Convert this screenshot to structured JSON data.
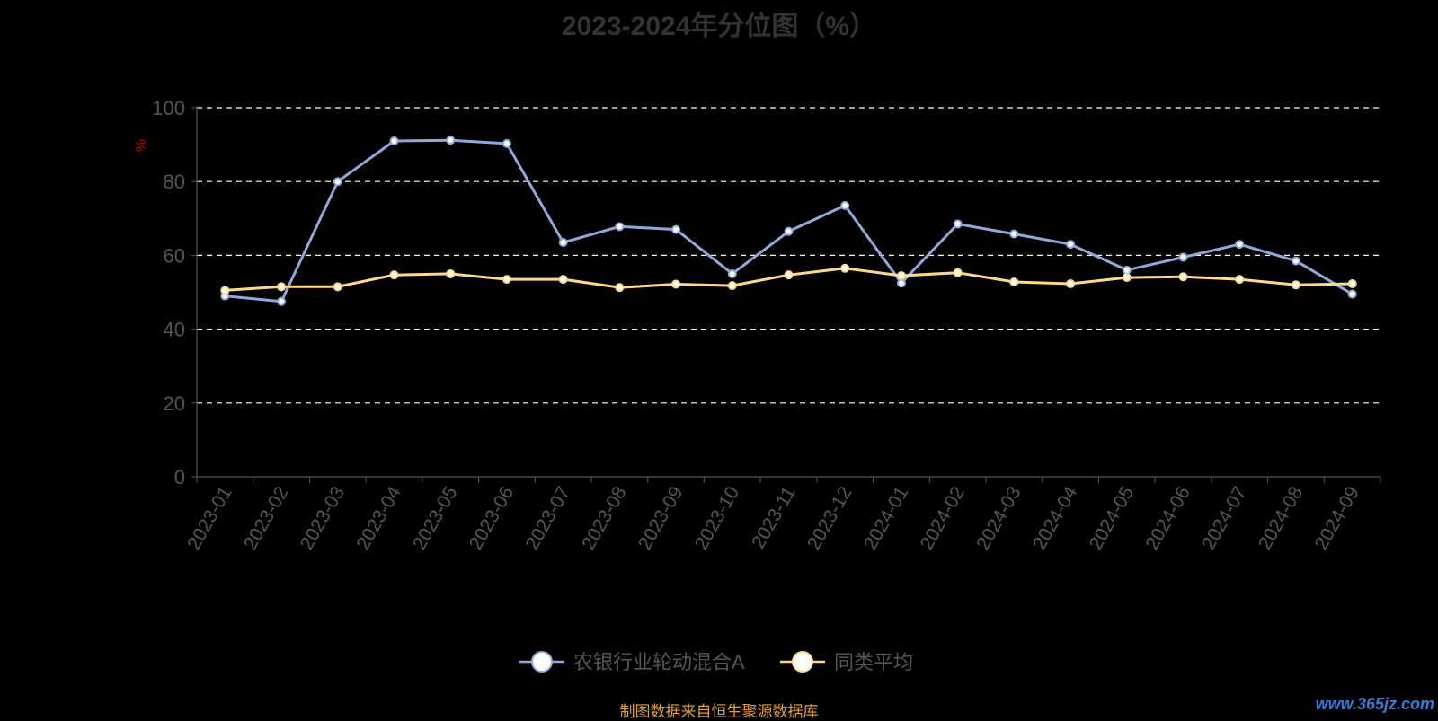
{
  "chart_data": {
    "type": "line",
    "title": "2023-2024年分位图（%）",
    "ylabel": "%",
    "ylim": [
      0,
      100
    ],
    "yticks": [
      0,
      20,
      40,
      60,
      80,
      100
    ],
    "grid": "dashed horizontal",
    "legend_position": "bottom-center",
    "x": [
      "2023-01",
      "2023-02",
      "2023-03",
      "2023-04",
      "2023-05",
      "2023-06",
      "2023-07",
      "2023-08",
      "2023-09",
      "2023-10",
      "2023-11",
      "2023-12",
      "2024-01",
      "2024-02",
      "2024-03",
      "2024-04",
      "2024-05",
      "2024-06",
      "2024-07",
      "2024-08",
      "2024-09"
    ],
    "series": [
      {
        "name": "农银行业轮动混合A",
        "color": "#8eaadb",
        "values": [
          49,
          47.5,
          80,
          91,
          91.2,
          90.3,
          63.5,
          67.8,
          67,
          55,
          66.5,
          73.5,
          52.5,
          68.5,
          65.8,
          63,
          56,
          59.5,
          63,
          58.5,
          49.5
        ]
      },
      {
        "name": "同类平均",
        "color": "#ffd98a",
        "values": [
          50.5,
          51.5,
          51.5,
          54.7,
          55,
          53.5,
          53.5,
          51.3,
          52.2,
          51.8,
          54.7,
          56.5,
          54.5,
          55.3,
          52.8,
          52.3,
          54,
          54.2,
          53.5,
          52,
          52.3
        ]
      }
    ]
  },
  "footer": {
    "source": "制图数据来自恒生聚源数据库",
    "watermark": "www.365jz.com"
  }
}
